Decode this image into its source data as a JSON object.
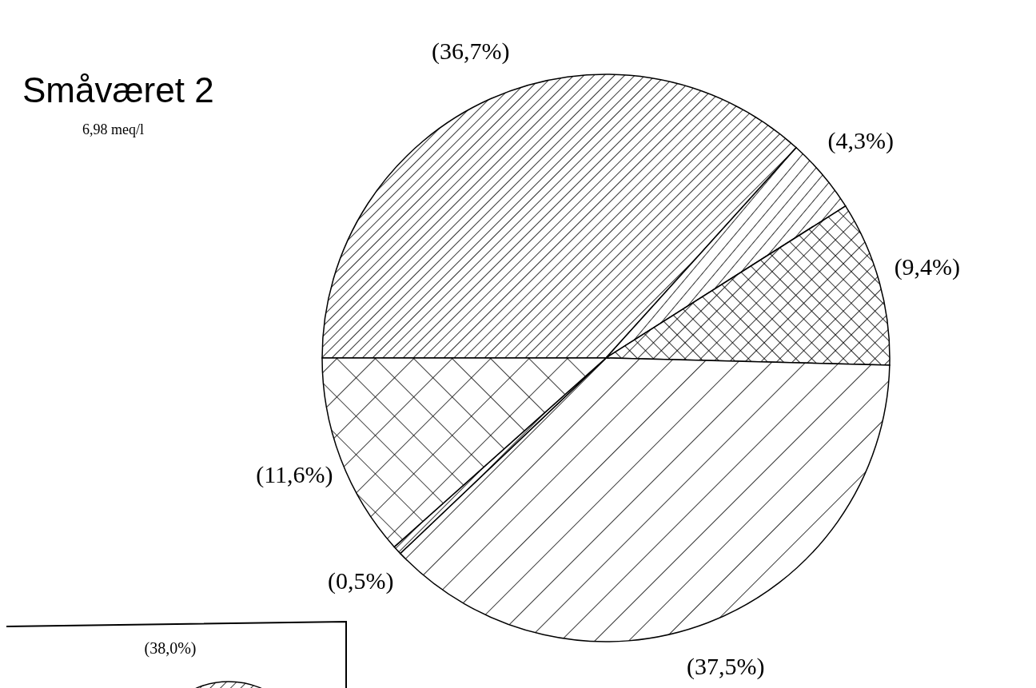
{
  "chart_data": {
    "type": "pie",
    "title": "Småværet 2",
    "subtitle": "6,98 meq/l",
    "categories": [
      null,
      null,
      null,
      null,
      null,
      null
    ],
    "values": [
      36.7,
      4.3,
      9.4,
      37.5,
      0.5,
      11.6
    ],
    "value_labels": [
      "(36,7%)",
      "(4,3%)",
      "(9,4%)",
      "(37,5%)",
      "(0,5%)",
      "(11,6%)"
    ],
    "colors": [
      "#000000",
      "#000000",
      "#000000",
      "#000000",
      "#000000",
      "#000000"
    ],
    "annotations": [
      "(38,0%)"
    ]
  }
}
